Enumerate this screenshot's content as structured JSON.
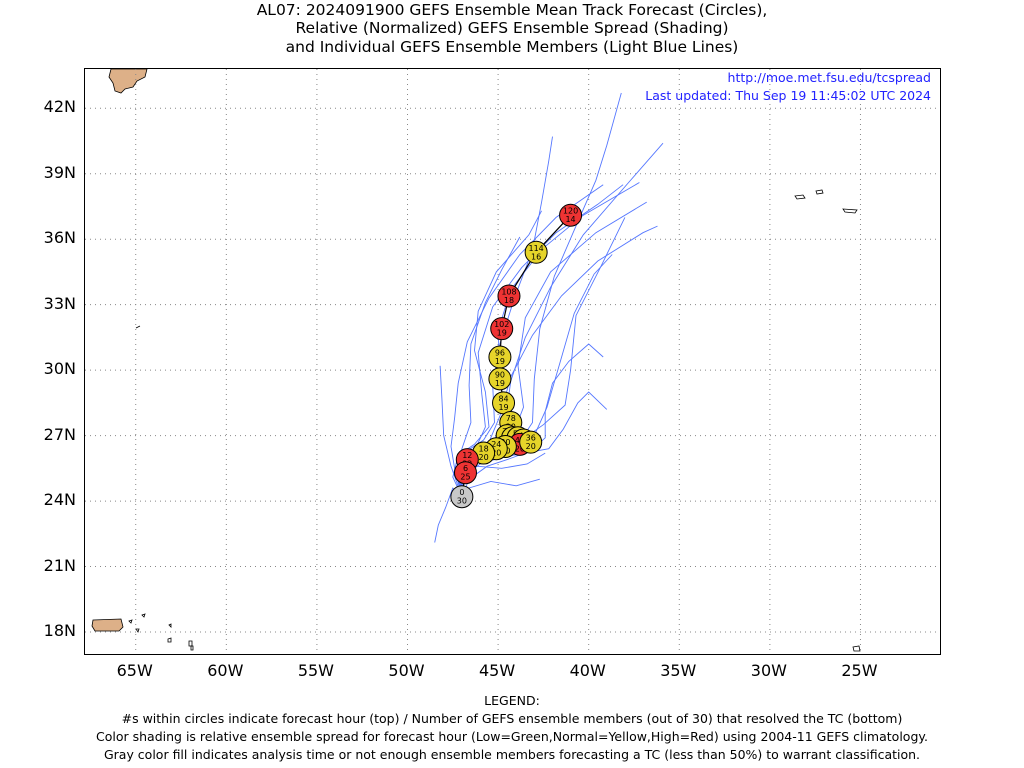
{
  "title": {
    "line1": "AL07: 2024091900 GEFS Ensemble Mean Track Forecast (Circles),",
    "line2": "Relative (Normalized) GEFS Ensemble Spread (Shading)",
    "line3": "and Individual GEFS Ensemble Members (Light Blue Lines)"
  },
  "source_url": "http://moe.met.fsu.edu/tcspread",
  "last_updated": "Last updated: Thu Sep 19 11:45:02 UTC 2024",
  "axes": {
    "lon_ticks": [
      {
        "value": -65,
        "label": "65W"
      },
      {
        "value": -60,
        "label": "60W"
      },
      {
        "value": -55,
        "label": "55W"
      },
      {
        "value": -50,
        "label": "50W"
      },
      {
        "value": -45,
        "label": "45W"
      },
      {
        "value": -40,
        "label": "40W"
      },
      {
        "value": -35,
        "label": "35W"
      },
      {
        "value": -30,
        "label": "30W"
      },
      {
        "value": -25,
        "label": "25W"
      }
    ],
    "lat_ticks": [
      {
        "value": 42,
        "label": "42N"
      },
      {
        "value": 39,
        "label": "39N"
      },
      {
        "value": 36,
        "label": "36N"
      },
      {
        "value": 33,
        "label": "33N"
      },
      {
        "value": 30,
        "label": "30N"
      },
      {
        "value": 27,
        "label": "27N"
      },
      {
        "value": 24,
        "label": "24N"
      },
      {
        "value": 21,
        "label": "21N"
      },
      {
        "value": 18,
        "label": "18N"
      }
    ],
    "lon_range": [
      -67.8,
      -20.5
    ],
    "lat_range": [
      16.9,
      43.8
    ],
    "grid": "dotted"
  },
  "colors": {
    "low": "#33cc33",
    "normal": "#e6d42a",
    "high": "#ee3333",
    "gray": "#c8c8c8",
    "member_track": "#5577ff",
    "land": "#ddb088",
    "mean_track": "#000000"
  },
  "mean_track": [
    {
      "hour": 0,
      "members": 30,
      "lat": 24.2,
      "lon": -47.0,
      "spread": "gray"
    },
    {
      "hour": 6,
      "members": 25,
      "lat": 25.3,
      "lon": -46.8,
      "spread": "high"
    },
    {
      "hour": 12,
      "members": 22,
      "lat": 25.9,
      "lon": -46.7,
      "spread": "high"
    },
    {
      "hour": 18,
      "members": 20,
      "lat": 26.2,
      "lon": -45.8,
      "spread": "normal"
    },
    {
      "hour": 24,
      "members": 20,
      "lat": 26.4,
      "lon": -45.1,
      "spread": "normal"
    },
    {
      "hour": 30,
      "members": 20,
      "lat": 26.5,
      "lon": -44.6,
      "spread": "normal"
    },
    {
      "hour": 36,
      "members": 20,
      "lat": 26.7,
      "lon": -43.2,
      "spread": "normal"
    },
    {
      "hour": 42,
      "members": 20,
      "lat": 26.6,
      "lon": -43.8,
      "spread": "high"
    },
    {
      "hour": 48,
      "members": 20,
      "lat": 26.8,
      "lon": -43.6,
      "spread": "normal"
    },
    {
      "hour": 54,
      "members": 20,
      "lat": 26.9,
      "lon": -43.9,
      "spread": "normal"
    },
    {
      "hour": 60,
      "members": 20,
      "lat": 26.9,
      "lon": -44.2,
      "spread": "normal"
    },
    {
      "hour": 66,
      "members": 20,
      "lat": 26.8,
      "lon": -44.2,
      "spread": "normal"
    },
    {
      "hour": 72,
      "members": 20,
      "lat": 27.0,
      "lon": -44.5,
      "spread": "normal"
    },
    {
      "hour": 78,
      "members": 20,
      "lat": 27.6,
      "lon": -44.3,
      "spread": "normal"
    },
    {
      "hour": 84,
      "members": 19,
      "lat": 28.5,
      "lon": -44.7,
      "spread": "normal"
    },
    {
      "hour": 90,
      "members": 19,
      "lat": 29.6,
      "lon": -44.9,
      "spread": "normal"
    },
    {
      "hour": 96,
      "members": 19,
      "lat": 30.6,
      "lon": -44.9,
      "spread": "normal"
    },
    {
      "hour": 102,
      "members": 19,
      "lat": 31.9,
      "lon": -44.8,
      "spread": "high"
    },
    {
      "hour": 108,
      "members": 18,
      "lat": 33.4,
      "lon": -44.4,
      "spread": "high"
    },
    {
      "hour": 114,
      "members": 16,
      "lat": 35.4,
      "lon": -42.9,
      "spread": "normal"
    },
    {
      "hour": 120,
      "members": 14,
      "lat": 37.1,
      "lon": -41.0,
      "spread": "high"
    }
  ],
  "member_tracks": [
    [
      [
        -47.0,
        24.2
      ],
      [
        -47.2,
        25.3
      ],
      [
        -46.7,
        26.0
      ],
      [
        -45.6,
        26.3
      ],
      [
        -44.8,
        26.9
      ],
      [
        -44.7,
        28.3
      ],
      [
        -44.9,
        30.0
      ],
      [
        -45.0,
        31.8
      ],
      [
        -44.3,
        33.7
      ],
      [
        -42.5,
        35.6
      ],
      [
        -40.3,
        37.1
      ],
      [
        -37.2,
        38.6
      ]
    ],
    [
      [
        -47.0,
        24.2
      ],
      [
        -46.9,
        25.2
      ],
      [
        -46.5,
        26.0
      ],
      [
        -45.4,
        26.5
      ],
      [
        -44.2,
        27.0
      ],
      [
        -43.6,
        28.3
      ],
      [
        -43.9,
        30.2
      ],
      [
        -43.5,
        32.4
      ],
      [
        -42.1,
        34.5
      ],
      [
        -39.6,
        36.3
      ],
      [
        -36.8,
        37.7
      ]
    ],
    [
      [
        -47.0,
        24.2
      ],
      [
        -47.5,
        25.1
      ],
      [
        -47.2,
        26.1
      ],
      [
        -46.3,
        26.6
      ],
      [
        -45.5,
        27.4
      ],
      [
        -45.7,
        29.0
      ],
      [
        -46.3,
        30.9
      ],
      [
        -46.1,
        32.7
      ],
      [
        -45.1,
        34.5
      ],
      [
        -43.3,
        36.2
      ],
      [
        -42.6,
        37.3
      ]
    ],
    [
      [
        -47.0,
        24.2
      ],
      [
        -46.8,
        25.4
      ],
      [
        -46.2,
        26.0
      ],
      [
        -45.0,
        26.4
      ],
      [
        -43.7,
        26.8
      ],
      [
        -42.5,
        27.5
      ],
      [
        -41.3,
        28.4
      ],
      [
        -41.0,
        30.0
      ],
      [
        -40.7,
        32.5
      ],
      [
        -39.3,
        34.8
      ],
      [
        -38.0,
        37.0
      ]
    ],
    [
      [
        -47.0,
        24.2
      ],
      [
        -47.3,
        25.2
      ],
      [
        -46.9,
        26.2
      ],
      [
        -45.8,
        26.8
      ],
      [
        -45.2,
        27.6
      ],
      [
        -45.3,
        29.3
      ],
      [
        -44.9,
        31.2
      ],
      [
        -44.1,
        33.3
      ],
      [
        -43.1,
        35.5
      ],
      [
        -42.6,
        37.7
      ],
      [
        -42.2,
        39.6
      ],
      [
        -42.0,
        40.7
      ]
    ],
    [
      [
        -47.0,
        24.2
      ],
      [
        -46.6,
        25.0
      ],
      [
        -45.6,
        25.6
      ],
      [
        -44.5,
        25.9
      ],
      [
        -43.2,
        26.3
      ],
      [
        -42.4,
        26.9
      ],
      [
        -42.4,
        28.1
      ],
      [
        -42.0,
        29.4
      ],
      [
        -41.1,
        30.4
      ],
      [
        -40.0,
        31.2
      ],
      [
        -39.2,
        30.6
      ]
    ],
    [
      [
        -47.0,
        24.2
      ],
      [
        -47.4,
        25.5
      ],
      [
        -47.6,
        26.5
      ],
      [
        -47.4,
        27.8
      ],
      [
        -47.2,
        29.4
      ],
      [
        -46.7,
        31.3
      ],
      [
        -45.5,
        33.3
      ],
      [
        -43.8,
        35.3
      ],
      [
        -41.8,
        37.0
      ],
      [
        -39.2,
        38.5
      ]
    ],
    [
      [
        -47.0,
        24.2
      ],
      [
        -47.1,
        25.3
      ],
      [
        -46.5,
        26.1
      ],
      [
        -45.5,
        26.7
      ],
      [
        -44.9,
        27.9
      ],
      [
        -44.3,
        29.7
      ],
      [
        -43.1,
        31.6
      ],
      [
        -41.5,
        33.4
      ],
      [
        -39.5,
        35.0
      ],
      [
        -37.0,
        36.3
      ],
      [
        -36.2,
        36.6
      ]
    ],
    [
      [
        -47.0,
        24.2
      ],
      [
        -46.9,
        25.1
      ],
      [
        -46.0,
        25.7
      ],
      [
        -44.8,
        26.0
      ],
      [
        -43.5,
        26.2
      ],
      [
        -42.2,
        26.4
      ],
      [
        -41.4,
        27.3
      ],
      [
        -40.6,
        28.5
      ],
      [
        -40.0,
        29.0
      ],
      [
        -39.0,
        28.2
      ]
    ],
    [
      [
        -47.0,
        24.2
      ],
      [
        -47.2,
        25.4
      ],
      [
        -47.0,
        26.4
      ],
      [
        -46.5,
        27.6
      ],
      [
        -46.6,
        29.3
      ],
      [
        -46.5,
        31.2
      ],
      [
        -45.7,
        33.1
      ],
      [
        -44.8,
        34.6
      ],
      [
        -43.8,
        36.1
      ]
    ],
    [
      [
        -47.0,
        24.2
      ],
      [
        -47.0,
        25.3
      ],
      [
        -46.4,
        26.1
      ],
      [
        -45.3,
        26.7
      ],
      [
        -44.6,
        27.7
      ],
      [
        -44.3,
        29.5
      ],
      [
        -43.5,
        31.5
      ],
      [
        -42.1,
        33.8
      ],
      [
        -40.3,
        36.2
      ],
      [
        -37.8,
        38.6
      ],
      [
        -35.9,
        40.4
      ]
    ],
    [
      [
        -47.0,
        24.2
      ],
      [
        -46.8,
        25.3
      ],
      [
        -46.3,
        26.3
      ],
      [
        -45.7,
        27.4
      ],
      [
        -45.9,
        28.9
      ],
      [
        -46.1,
        30.8
      ],
      [
        -45.3,
        32.9
      ],
      [
        -43.7,
        34.7
      ],
      [
        -41.8,
        36.3
      ],
      [
        -39.5,
        37.6
      ],
      [
        -38.1,
        38.5
      ]
    ],
    [
      [
        -47.0,
        24.2
      ],
      [
        -47.2,
        25.0
      ],
      [
        -46.8,
        25.9
      ],
      [
        -45.7,
        26.4
      ],
      [
        -44.2,
        26.3
      ],
      [
        -43.0,
        27.0
      ],
      [
        -42.3,
        28.3
      ],
      [
        -41.6,
        30.3
      ],
      [
        -40.8,
        32.6
      ],
      [
        -39.7,
        34.4
      ],
      [
        -38.7,
        35.3
      ]
    ],
    [
      [
        -47.0,
        24.2
      ],
      [
        -46.9,
        25.2
      ],
      [
        -46.2,
        25.9
      ],
      [
        -45.1,
        26.2
      ],
      [
        -43.9,
        26.6
      ],
      [
        -43.1,
        27.6
      ],
      [
        -43.0,
        29.6
      ],
      [
        -42.7,
        31.9
      ],
      [
        -41.9,
        34.3
      ],
      [
        -40.6,
        36.8
      ],
      [
        -39.6,
        38.7
      ],
      [
        -39.0,
        40.3
      ],
      [
        -38.2,
        42.7
      ]
    ],
    [
      [
        -47.0,
        24.2
      ],
      [
        -47.5,
        24.6
      ],
      [
        -47.9,
        23.7
      ],
      [
        -48.3,
        22.9
      ],
      [
        -48.5,
        22.1
      ]
    ],
    [
      [
        -47.0,
        24.2
      ],
      [
        -47.6,
        25.6
      ],
      [
        -48.0,
        27.0
      ],
      [
        -48.1,
        28.7
      ],
      [
        -48.2,
        30.2
      ]
    ],
    [
      [
        -47.0,
        24.2
      ],
      [
        -46.6,
        24.6
      ],
      [
        -45.4,
        24.9
      ],
      [
        -44.0,
        24.7
      ],
      [
        -42.7,
        25.0
      ]
    ],
    [
      [
        -47.0,
        24.2
      ],
      [
        -47.1,
        25.2
      ],
      [
        -46.2,
        25.6
      ],
      [
        -44.8,
        25.5
      ],
      [
        -43.4,
        25.7
      ],
      [
        -42.4,
        26.2
      ]
    ]
  ],
  "legend": {
    "heading": "LEGEND:",
    "line1": "#s within circles indicate forecast hour (top) / Number of GEFS ensemble members (out of 30) that resolved the TC (bottom)",
    "line2": "Color shading is relative ensemble spread for forecast hour (Low=Green,Normal=Yellow,High=Red) using 2004-11 GEFS climatology.",
    "line3": "Gray color fill indicates analysis time or not enough ensemble members forecasting a TC (less than 50%) to warrant classification."
  }
}
